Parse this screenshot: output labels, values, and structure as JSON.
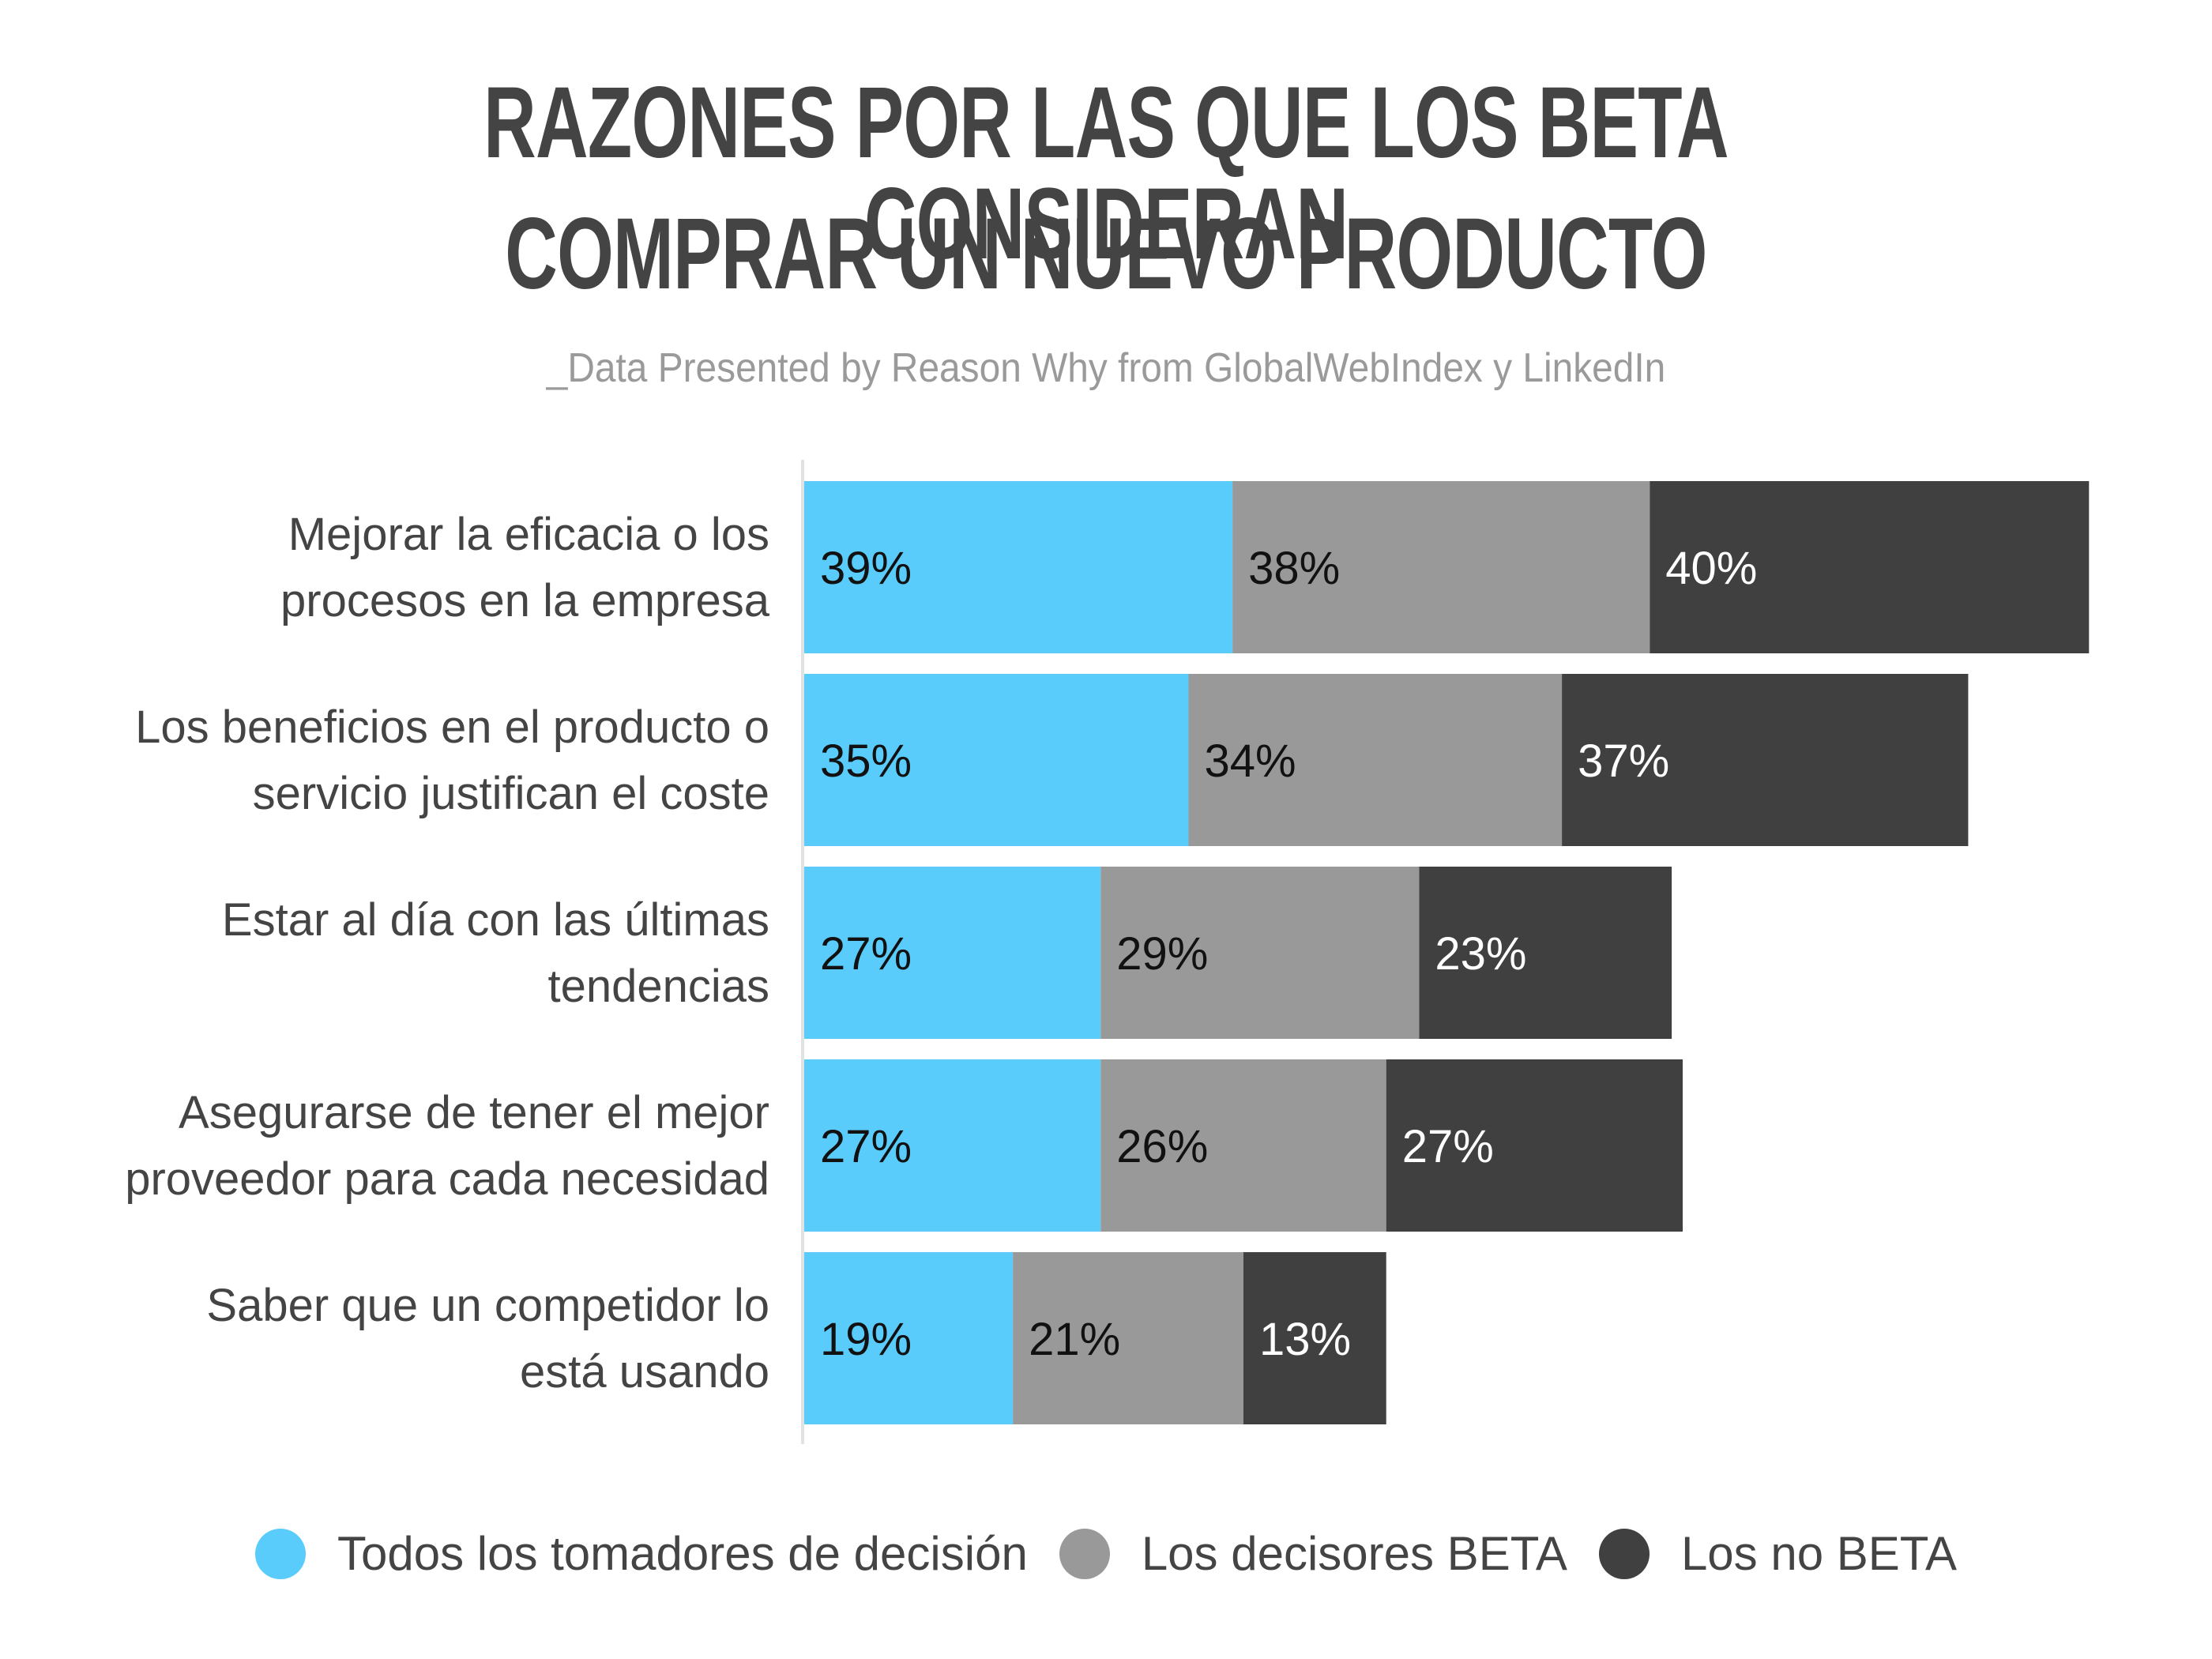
{
  "header": {
    "title_line1": "RAZONES POR LAS QUE LOS BETA CONSIDERAN",
    "title_line2": "COMPRAR UN NUEVO PRODUCTO",
    "subtitle": "_Data Presented by Reason Why from GlobalWebIndex y LinkedIn"
  },
  "legend": [
    {
      "label": "Todos los tomadores de decisión",
      "color": "#5ACCFC"
    },
    {
      "label": "Los decisores BETA",
      "color": "#999999"
    },
    {
      "label": "Los no BETA",
      "color": "#404040"
    }
  ],
  "chart_data": {
    "type": "bar",
    "orientation": "horizontal",
    "stacked": true,
    "title": "RAZONES POR LAS QUE LOS BETA CONSIDERAN COMPRAR UN NUEVO PRODUCTO",
    "subtitle": "_Data Presented by Reason Why from GlobalWebIndex y LinkedIn",
    "xlabel": "",
    "ylabel": "",
    "grid": false,
    "legend_position": "bottom",
    "categories": [
      [
        "Mejorar la eficacia o los",
        "procesos en la empresa"
      ],
      [
        "Los beneficios en el producto o",
        "servicio justifican el coste"
      ],
      [
        "Estar al día con las últimas",
        "tendencias"
      ],
      [
        "Asegurarse de tener el mejor",
        "proveedor para cada necesidad"
      ],
      [
        "Saber que un competidor lo",
        "está usando"
      ]
    ],
    "series": [
      {
        "name": "Todos los tomadores de decisión",
        "color": "#5ACCFC",
        "label_color": "#111111",
        "values": [
          39,
          35,
          27,
          27,
          19
        ]
      },
      {
        "name": "Los decisores BETA",
        "color": "#999999",
        "label_color": "#111111",
        "values": [
          38,
          34,
          29,
          26,
          21
        ]
      },
      {
        "name": "Los no BETA",
        "color": "#404040",
        "label_color": "#ffffff",
        "values": [
          40,
          37,
          23,
          27,
          13
        ]
      }
    ],
    "value_suffix": "%"
  }
}
